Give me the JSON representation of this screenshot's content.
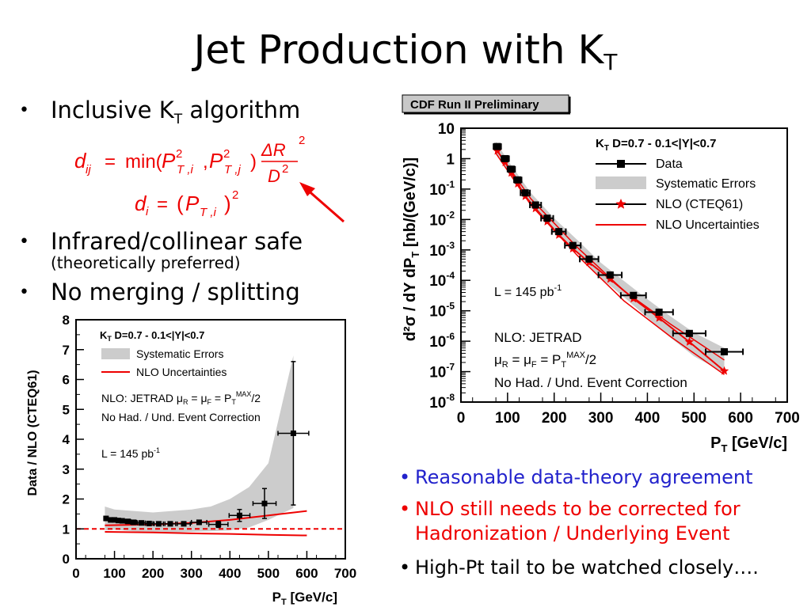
{
  "slide": {
    "title": "Jet Production with K",
    "title_sub": "T"
  },
  "left_bullets": [
    {
      "text": "Inclusive K",
      "sub": "T",
      "tail": " algorithm",
      "dot": "•"
    },
    {
      "text": "Infrared/collinear safe",
      "dot": "•"
    },
    {
      "text": "(theoretically  preferred)"
    },
    {
      "text": "No merging / splitting",
      "dot": "•"
    }
  ],
  "formulas": {
    "dij_lhs": "d",
    "dij_lhs_sub": "ij",
    "eq": "=",
    "min": "min(",
    "P": "P",
    "exp2": "2",
    "sub_Ti": "T ,i",
    "comma": ",",
    "sub_Tj": "T ,j",
    "close": ")",
    "delta_R": "ΔR",
    "D": "D",
    "di_lhs": "d",
    "di_lhs_sub": "i",
    "di_open": "(",
    "di_P": "P",
    "di_sub": "T ,i",
    "di_close": ")",
    "di_exp": "2",
    "color": "#ee0000"
  },
  "right_bullets": [
    {
      "dot": "•",
      "lines": [
        "Reasonable data-theory agreement"
      ],
      "color": "#2222cc"
    },
    {
      "dot": "•",
      "lines": [
        "NLO still needs to be corrected for",
        "Hadronization / Underlying Event"
      ],
      "color": "#ee0000"
    },
    {
      "dot": "•",
      "lines": [
        "High-Pt tail to be watched closely…."
      ],
      "color": "#000000"
    }
  ],
  "chart_data": [
    {
      "type": "scatter",
      "name_tag": "cross-section",
      "banner": "CDF Run II Preliminary",
      "xlabel": "P",
      "xlabel_sub": "T",
      "xlabel_unit": " [GeV/c]",
      "ylabel": "d²σ / dY dP",
      "ylabel_sub": "T",
      "ylabel_unit": " [nb/(GeV/c)]",
      "xlim": [
        0,
        700
      ],
      "ylim_log10": [
        -8,
        1
      ],
      "y_log": true,
      "xticks": [
        0,
        100,
        200,
        300,
        400,
        500,
        600,
        700
      ],
      "yticks": [
        {
          "exp": -8,
          "label": "10",
          "sup": "-8"
        },
        {
          "exp": -7,
          "label": "10",
          "sup": "-7"
        },
        {
          "exp": -6,
          "label": "10",
          "sup": "-6"
        },
        {
          "exp": -5,
          "label": "10",
          "sup": "-5"
        },
        {
          "exp": -4,
          "label": "10",
          "sup": "-4"
        },
        {
          "exp": -3,
          "label": "10",
          "sup": "-3"
        },
        {
          "exp": -2,
          "label": "10",
          "sup": "-2"
        },
        {
          "exp": -1,
          "label": "10",
          "sup": "-1"
        },
        {
          "exp": 0,
          "label": "1",
          "sup": ""
        },
        {
          "exp": 1,
          "label": "10",
          "sup": ""
        }
      ],
      "legend_title": "K",
      "legend_title_sub": "T",
      "legend_title_rest": " D=0.7 - 0.1<|Y|<0.7",
      "legend": [
        "Data",
        "Systematic Errors",
        "NLO (CTEQ61)",
        "NLO Uncertainties"
      ],
      "annotations": [
        {
          "text": "L = 145 pb",
          "sup": "-1"
        },
        {
          "text": "NLO: JETRAD"
        },
        {
          "text": "μ",
          "sub": "R",
          "mid": " = μ",
          "sub2": "F",
          "tail": " = P",
          "sub3": "T",
          "sup3": "MAX",
          "end": "/2"
        },
        {
          "text": "No Had. / Und. Event Correction"
        }
      ],
      "data": {
        "x": [
          78,
          95,
          108,
          122,
          138,
          160,
          185,
          210,
          240,
          275,
          320,
          370,
          425,
          490,
          565
        ],
        "y": [
          2.5,
          1.0,
          0.45,
          0.2,
          0.075,
          0.03,
          0.011,
          0.004,
          0.0014,
          0.0005,
          0.00015,
          3.2e-05,
          9e-06,
          1.8e-06,
          4.5e-07
        ],
        "xerr": [
          8,
          8,
          8,
          8,
          10,
          12,
          13,
          15,
          17,
          20,
          25,
          27,
          30,
          35,
          40
        ]
      },
      "nlo": {
        "x": [
          78,
          95,
          108,
          122,
          138,
          160,
          185,
          210,
          240,
          275,
          320,
          370,
          425,
          490,
          565
        ],
        "y": [
          1.8,
          0.75,
          0.34,
          0.15,
          0.058,
          0.023,
          0.0085,
          0.0031,
          0.0011,
          0.00039,
          0.00011,
          2.5e-05,
          5.8e-06,
          9.5e-07,
          1.05e-07
        ]
      },
      "systematic_band": {
        "x": [
          75,
          100,
          150,
          200,
          250,
          300,
          350,
          400,
          450,
          500,
          565
        ],
        "lo": [
          1.6,
          0.38,
          0.032,
          0.0042,
          0.00075,
          0.00012,
          2.8e-05,
          6e-06,
          1.3e-06,
          3.2e-07,
          9e-08
        ],
        "hi": [
          3.6,
          0.9,
          0.075,
          0.011,
          0.0021,
          0.00038,
          9.5e-05,
          2.4e-05,
          6.5e-06,
          1.9e-06,
          6e-07
        ]
      },
      "nlo_uncert": {
        "x": [
          75,
          150,
          250,
          350,
          450,
          565
        ],
        "lo": [
          1.5,
          0.03,
          0.00065,
          2.1e-05,
          1.4e-06,
          8e-08
        ],
        "hi": [
          2.1,
          0.048,
          0.0012,
          4.5e-05,
          3.6e-06,
          2.4e-07
        ]
      }
    },
    {
      "type": "scatter",
      "name_tag": "ratio",
      "xlabel": "P",
      "xlabel_sub": "T",
      "xlabel_unit": " [GeV/c]",
      "ylabel": "Data / NLO (CTEQ61)",
      "xlim": [
        0,
        700
      ],
      "ylim": [
        0,
        8
      ],
      "xticks": [
        0,
        100,
        200,
        300,
        400,
        500,
        600,
        700
      ],
      "yticks": [
        0,
        1,
        2,
        3,
        4,
        5,
        6,
        7,
        8
      ],
      "legend_title": "K",
      "legend_title_sub": "T",
      "legend_title_rest": " D=0.7 - 0.1<|Y|<0.7",
      "legend": [
        "Systematic Errors",
        "NLO Uncertainties"
      ],
      "annotations": [
        {
          "text": "NLO: JETRAD  μ",
          "sub": "R",
          "mid": " = μ",
          "sub2": "F",
          "tail": " = P",
          "sub3": "T",
          "sup3": "MAX",
          "end": "/2"
        },
        {
          "text": "No Had. / Und. Event Correction"
        },
        {
          "text": "L = 145 pb",
          "sup": "-1"
        }
      ],
      "reference_line": 1,
      "data": {
        "x": [
          78,
          90,
          100,
          110,
          120,
          135,
          150,
          170,
          190,
          215,
          245,
          280,
          320,
          370,
          425,
          490,
          565
        ],
        "y": [
          1.35,
          1.3,
          1.3,
          1.28,
          1.27,
          1.25,
          1.22,
          1.2,
          1.18,
          1.17,
          1.17,
          1.17,
          1.22,
          1.15,
          1.45,
          1.85,
          4.2
        ],
        "xerr": [
          5,
          5,
          5,
          5,
          5,
          7,
          8,
          10,
          10,
          12,
          14,
          17,
          20,
          25,
          27,
          30,
          40
        ],
        "yerr": [
          0.05,
          0.04,
          0.04,
          0.04,
          0.04,
          0.04,
          0.04,
          0.04,
          0.04,
          0.04,
          0.04,
          0.05,
          0.07,
          0.1,
          0.2,
          0.5,
          2.4
        ]
      },
      "systematic_band": {
        "x": [
          75,
          100,
          150,
          200,
          250,
          300,
          350,
          400,
          450,
          500,
          565
        ],
        "lo": [
          0.95,
          0.97,
          0.92,
          0.9,
          0.88,
          0.9,
          0.92,
          0.95,
          1.05,
          1.3,
          1.7
        ],
        "hi": [
          1.75,
          1.65,
          1.6,
          1.55,
          1.6,
          1.65,
          1.75,
          2.0,
          2.4,
          3.2,
          6.8
        ]
      },
      "nlo_uncert_hi": {
        "x": [
          75,
          200,
          300,
          400,
          500,
          600
        ],
        "y": [
          1.12,
          1.15,
          1.2,
          1.3,
          1.45,
          1.6
        ]
      },
      "nlo_uncert_lo": {
        "x": [
          75,
          200,
          300,
          400,
          500,
          600
        ],
        "y": [
          0.9,
          0.88,
          0.85,
          0.83,
          0.8,
          0.78
        ]
      }
    }
  ]
}
